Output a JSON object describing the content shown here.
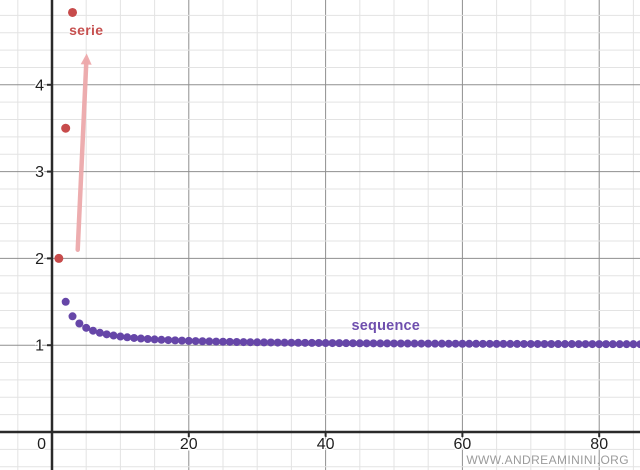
{
  "watermark": "WWW.ANDREAMININI.ORG",
  "chart_data": {
    "type": "scatter",
    "title": "",
    "xlabel": "",
    "ylabel": "",
    "xlim": [
      -7.6,
      86
    ],
    "ylim": [
      -0.44,
      4.98
    ],
    "x_ticks": [
      0,
      20,
      40,
      60,
      80
    ],
    "y_ticks": [
      1,
      2,
      3,
      4
    ],
    "x_major_step": 20,
    "x_minor_step": 5,
    "y_major_step": 1,
    "y_minor_step": 0.2,
    "grid": true,
    "legend_position": "none",
    "colors": {
      "axis": "#2a2a2a",
      "major_grid": "#8f8f8f",
      "minor_grid": "#e3e3e3",
      "tick_label": "#1f1f1f",
      "background": "#ffffff",
      "arrow": "#eda9ab",
      "watermark": "#9b9b9b"
    },
    "series": [
      {
        "name": "sequence",
        "label": "sequence",
        "color": "#6646a8",
        "label_color": "#6f4fae",
        "point_radius": 4,
        "x_start": 1,
        "x_step": 1,
        "values": [
          2,
          1.5,
          1.3333,
          1.25,
          1.2,
          1.1667,
          1.1429,
          1.125,
          1.1111,
          1.1,
          1.0909,
          1.0833,
          1.0769,
          1.0714,
          1.0667,
          1.0625,
          1.0588,
          1.0556,
          1.0526,
          1.05,
          1.0476,
          1.0455,
          1.0435,
          1.0417,
          1.04,
          1.0385,
          1.037,
          1.0357,
          1.0345,
          1.0333,
          1.0323,
          1.0313,
          1.0303,
          1.0294,
          1.0286,
          1.0278,
          1.027,
          1.0263,
          1.0256,
          1.025,
          1.0244,
          1.0238,
          1.0233,
          1.0227,
          1.0222,
          1.0217,
          1.0213,
          1.0208,
          1.0204,
          1.02,
          1.0196,
          1.0192,
          1.0189,
          1.0185,
          1.0182,
          1.0179,
          1.0175,
          1.0172,
          1.0169,
          1.0167,
          1.0164,
          1.0161,
          1.0159,
          1.0156,
          1.0154,
          1.0152,
          1.0149,
          1.0147,
          1.0145,
          1.0143,
          1.0141,
          1.0139,
          1.0137,
          1.0135,
          1.0133,
          1.0132,
          1.013,
          1.0128,
          1.0127,
          1.0125,
          1.0123,
          1.0122,
          1.012,
          1.0119,
          1.0118,
          1.0116
        ],
        "label_xy": [
          48.8,
          1.22
        ]
      },
      {
        "name": "serie",
        "label": "serie",
        "color": "#c74b4b",
        "label_color": "#c6504f",
        "point_radius": 4.5,
        "points": [
          [
            1,
            2
          ],
          [
            2,
            3.5
          ],
          [
            3,
            4.8333
          ]
        ],
        "label_xy": [
          5.0,
          4.63
        ]
      }
    ],
    "annotations": [
      {
        "type": "arrow",
        "from_xy": [
          3.76,
          2.1
        ],
        "to_xy": [
          5.07,
          4.36
        ],
        "color": "#eda9ab"
      }
    ]
  }
}
